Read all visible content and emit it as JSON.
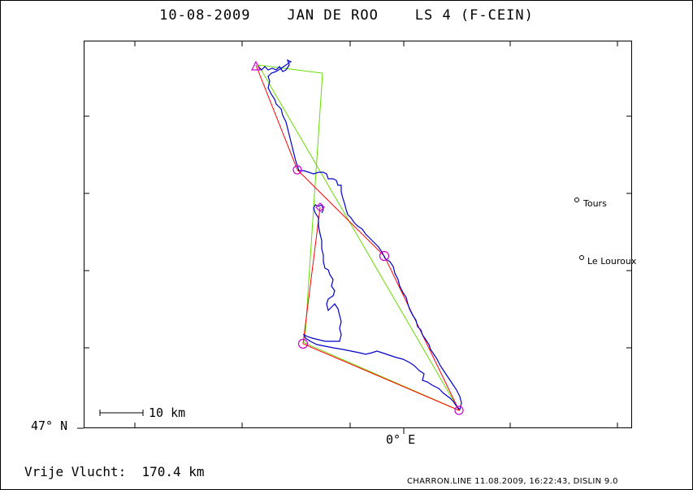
{
  "header": {
    "title": "10-08-2009    JAN DE ROO    LS 4 (F-CEIN)"
  },
  "axes": {
    "lat_label": "47° N",
    "lon_label": "0° E"
  },
  "scale_bar": {
    "label": "10 km"
  },
  "towns": [
    {
      "name": "Tours"
    },
    {
      "name": "Le Louroux"
    }
  ],
  "summary": {
    "distance_text": "Vrije Vlucht:  170.4 km"
  },
  "footer": {
    "text": "CHARRON.LINE 11.08.2009, 16:22:43, DISLIN 9.0"
  },
  "colors": {
    "track": "#0000cc",
    "task_line": "#ff0000",
    "optimised_line": "#66dd00",
    "turnpoint_marker": "#cc00cc"
  }
}
